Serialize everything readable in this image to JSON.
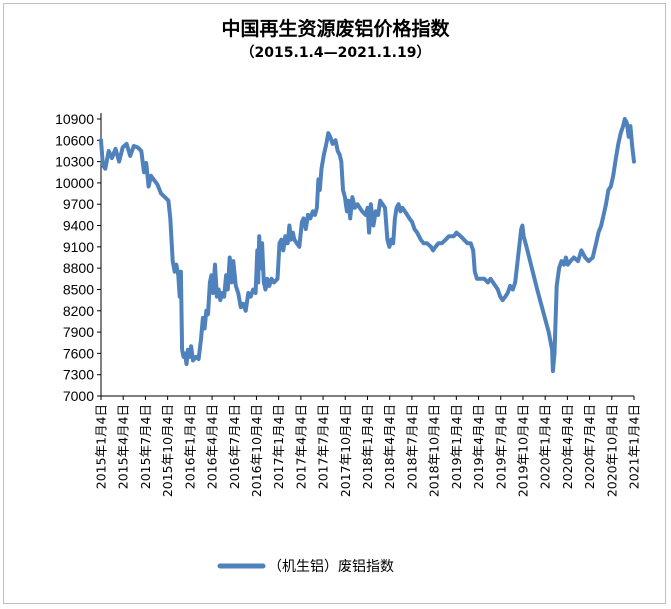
{
  "chart_data": {
    "type": "line",
    "title": "中国再生资源废铝价格指数",
    "subtitle": "（2015.1.4—2021.1.19）",
    "xlabel": "",
    "ylabel": "",
    "ylim": [
      7000,
      10900
    ],
    "yticks": [
      "10900",
      "10600",
      "10300",
      "10000",
      "9700",
      "9400",
      "9100",
      "8800",
      "8500",
      "8200",
      "7900",
      "7600",
      "7300",
      "7000"
    ],
    "xticks": [
      "2015年1月4日",
      "2015年4月4日",
      "2015年7月4日",
      "2015年10月4日",
      "2016年1月4日",
      "2016年4月4日",
      "2016年7月4日",
      "2016年10月4日",
      "2017年1月4日",
      "2017年4月4日",
      "2017年7月4日",
      "2017年10月4日",
      "2018年1月4日",
      "2018年4月4日",
      "2018年7月4日",
      "2018年10月4日",
      "2019年1月4日",
      "2019年4月4日",
      "2019年7月4日",
      "2019年10月4日",
      "2020年1月4日",
      "2020年4月4日",
      "2020年7月4日",
      "2020年10月4日",
      "2021年1月4日"
    ],
    "x_range": [
      "2015-01-04",
      "2021-01-19"
    ],
    "grid": false,
    "legend_position": "bottom",
    "line_color": "#4f81bd",
    "series": [
      {
        "name": "（机生铝）废铝指数",
        "points": [
          [
            "2015-01-04",
            10600
          ],
          [
            "2015-01-12",
            10250
          ],
          [
            "2015-01-22",
            10200
          ],
          [
            "2015-02-05",
            10450
          ],
          [
            "2015-02-18",
            10350
          ],
          [
            "2015-03-05",
            10480
          ],
          [
            "2015-03-20",
            10300
          ],
          [
            "2015-04-04",
            10500
          ],
          [
            "2015-04-20",
            10550
          ],
          [
            "2015-05-05",
            10380
          ],
          [
            "2015-05-20",
            10520
          ],
          [
            "2015-06-05",
            10500
          ],
          [
            "2015-06-20",
            10450
          ],
          [
            "2015-07-01",
            10150
          ],
          [
            "2015-07-10",
            10280
          ],
          [
            "2015-07-20",
            9950
          ],
          [
            "2015-07-30",
            10100
          ],
          [
            "2015-08-10",
            10050
          ],
          [
            "2015-08-25",
            9980
          ],
          [
            "2015-09-10",
            9850
          ],
          [
            "2015-09-25",
            9800
          ],
          [
            "2015-10-10",
            9750
          ],
          [
            "2015-10-18",
            9500
          ],
          [
            "2015-10-28",
            8900
          ],
          [
            "2015-11-05",
            8750
          ],
          [
            "2015-11-12",
            8850
          ],
          [
            "2015-11-20",
            8700
          ],
          [
            "2015-11-26",
            8400
          ],
          [
            "2015-12-01",
            8750
          ],
          [
            "2015-12-06",
            7650
          ],
          [
            "2015-12-12",
            7550
          ],
          [
            "2015-12-18",
            7600
          ],
          [
            "2015-12-24",
            7450
          ],
          [
            "2015-12-30",
            7650
          ],
          [
            "2016-01-06",
            7550
          ],
          [
            "2016-01-12",
            7700
          ],
          [
            "2016-01-20",
            7500
          ],
          [
            "2016-02-01",
            7550
          ],
          [
            "2016-02-12",
            7520
          ],
          [
            "2016-02-22",
            7800
          ],
          [
            "2016-03-01",
            8100
          ],
          [
            "2016-03-08",
            7950
          ],
          [
            "2016-03-15",
            8200
          ],
          [
            "2016-03-22",
            8150
          ],
          [
            "2016-03-30",
            8600
          ],
          [
            "2016-04-05",
            8700
          ],
          [
            "2016-04-12",
            8450
          ],
          [
            "2016-04-20",
            8850
          ],
          [
            "2016-04-28",
            8400
          ],
          [
            "2016-05-05",
            8500
          ],
          [
            "2016-05-12",
            8350
          ],
          [
            "2016-05-20",
            8450
          ],
          [
            "2016-05-28",
            8400
          ],
          [
            "2016-06-05",
            8700
          ],
          [
            "2016-06-12",
            8500
          ],
          [
            "2016-06-20",
            8950
          ],
          [
            "2016-06-28",
            8600
          ],
          [
            "2016-07-05",
            8900
          ],
          [
            "2016-07-15",
            8550
          ],
          [
            "2016-07-25",
            8450
          ],
          [
            "2016-08-05",
            8250
          ],
          [
            "2016-08-15",
            8300
          ],
          [
            "2016-08-25",
            8200
          ],
          [
            "2016-09-05",
            8450
          ],
          [
            "2016-09-15",
            8400
          ],
          [
            "2016-09-25",
            8500
          ],
          [
            "2016-10-05",
            8450
          ],
          [
            "2016-10-12",
            9050
          ],
          [
            "2016-10-16",
            8600
          ],
          [
            "2016-10-20",
            9250
          ],
          [
            "2016-10-26",
            8800
          ],
          [
            "2016-11-01",
            9150
          ],
          [
            "2016-11-08",
            8600
          ],
          [
            "2016-11-15",
            8500
          ],
          [
            "2016-11-22",
            8650
          ],
          [
            "2016-12-01",
            8550
          ],
          [
            "2016-12-10",
            8650
          ],
          [
            "2016-12-20",
            8600
          ],
          [
            "2017-01-04",
            8650
          ],
          [
            "2017-01-12",
            9150
          ],
          [
            "2017-01-20",
            9200
          ],
          [
            "2017-01-28",
            9050
          ],
          [
            "2017-02-05",
            9250
          ],
          [
            "2017-02-15",
            9150
          ],
          [
            "2017-02-22",
            9400
          ],
          [
            "2017-03-01",
            9200
          ],
          [
            "2017-03-08",
            9300
          ],
          [
            "2017-03-15",
            9200
          ],
          [
            "2017-03-25",
            9150
          ],
          [
            "2017-04-04",
            9100
          ],
          [
            "2017-04-15",
            9450
          ],
          [
            "2017-04-22",
            9500
          ],
          [
            "2017-05-01",
            9350
          ],
          [
            "2017-05-10",
            9550
          ],
          [
            "2017-05-20",
            9500
          ],
          [
            "2017-05-30",
            9600
          ],
          [
            "2017-06-08",
            9550
          ],
          [
            "2017-06-16",
            9650
          ],
          [
            "2017-06-22",
            10050
          ],
          [
            "2017-06-28",
            9900
          ],
          [
            "2017-07-05",
            10200
          ],
          [
            "2017-07-15",
            10400
          ],
          [
            "2017-07-25",
            10550
          ],
          [
            "2017-08-02",
            10700
          ],
          [
            "2017-08-10",
            10650
          ],
          [
            "2017-08-20",
            10550
          ],
          [
            "2017-09-01",
            10600
          ],
          [
            "2017-09-10",
            10450
          ],
          [
            "2017-09-18",
            10400
          ],
          [
            "2017-09-25",
            10300
          ],
          [
            "2017-10-02",
            9900
          ],
          [
            "2017-10-10",
            9800
          ],
          [
            "2017-10-18",
            9600
          ],
          [
            "2017-10-25",
            9750
          ],
          [
            "2017-11-01",
            9500
          ],
          [
            "2017-11-10",
            9800
          ],
          [
            "2017-11-20",
            9650
          ],
          [
            "2017-12-01",
            9700
          ],
          [
            "2017-12-10",
            9650
          ],
          [
            "2017-12-20",
            9600
          ],
          [
            "2018-01-04",
            9550
          ],
          [
            "2018-01-12",
            9650
          ],
          [
            "2018-01-18",
            9300
          ],
          [
            "2018-01-25",
            9700
          ],
          [
            "2018-02-05",
            9400
          ],
          [
            "2018-02-15",
            9600
          ],
          [
            "2018-02-25",
            9550
          ],
          [
            "2018-03-05",
            9750
          ],
          [
            "2018-03-15",
            9700
          ],
          [
            "2018-03-25",
            9650
          ],
          [
            "2018-04-04",
            9200
          ],
          [
            "2018-04-12",
            9100
          ],
          [
            "2018-04-20",
            9200
          ],
          [
            "2018-04-28",
            9150
          ],
          [
            "2018-05-05",
            9500
          ],
          [
            "2018-05-12",
            9650
          ],
          [
            "2018-05-20",
            9700
          ],
          [
            "2018-05-28",
            9600
          ],
          [
            "2018-06-05",
            9650
          ],
          [
            "2018-06-15",
            9600
          ],
          [
            "2018-06-25",
            9550
          ],
          [
            "2018-07-04",
            9500
          ],
          [
            "2018-07-15",
            9450
          ],
          [
            "2018-07-25",
            9350
          ],
          [
            "2018-08-05",
            9300
          ],
          [
            "2018-08-20",
            9200
          ],
          [
            "2018-09-01",
            9150
          ],
          [
            "2018-09-15",
            9150
          ],
          [
            "2018-10-01",
            9100
          ],
          [
            "2018-10-10",
            9050
          ],
          [
            "2018-10-20",
            9100
          ],
          [
            "2018-11-01",
            9150
          ],
          [
            "2018-11-15",
            9150
          ],
          [
            "2018-12-01",
            9200
          ],
          [
            "2018-12-15",
            9250
          ],
          [
            "2019-01-04",
            9250
          ],
          [
            "2019-01-15",
            9300
          ],
          [
            "2019-02-01",
            9250
          ],
          [
            "2019-02-15",
            9200
          ],
          [
            "2019-03-01",
            9150
          ],
          [
            "2019-03-15",
            9150
          ],
          [
            "2019-03-25",
            9050
          ],
          [
            "2019-04-01",
            8750
          ],
          [
            "2019-04-10",
            8650
          ],
          [
            "2019-04-25",
            8650
          ],
          [
            "2019-05-10",
            8650
          ],
          [
            "2019-05-25",
            8600
          ],
          [
            "2019-06-05",
            8650
          ],
          [
            "2019-06-15",
            8600
          ],
          [
            "2019-06-25",
            8550
          ],
          [
            "2019-07-05",
            8500
          ],
          [
            "2019-07-15",
            8400
          ],
          [
            "2019-07-25",
            8350
          ],
          [
            "2019-08-05",
            8400
          ],
          [
            "2019-08-15",
            8450
          ],
          [
            "2019-08-25",
            8550
          ],
          [
            "2019-09-05",
            8500
          ],
          [
            "2019-09-15",
            8600
          ],
          [
            "2019-09-30",
            9050
          ],
          [
            "2019-10-10",
            9350
          ],
          [
            "2019-10-15",
            9400
          ],
          [
            "2019-10-20",
            9250
          ],
          [
            "2019-11-01",
            9100
          ],
          [
            "2019-12-15",
            8500
          ],
          [
            "2020-02-01",
            7900
          ],
          [
            "2020-02-15",
            7650
          ],
          [
            "2020-02-18",
            7350
          ],
          [
            "2020-02-25",
            7600
          ],
          [
            "2020-03-05",
            8550
          ],
          [
            "2020-03-15",
            8800
          ],
          [
            "2020-03-25",
            8900
          ],
          [
            "2020-04-04",
            8850
          ],
          [
            "2020-04-12",
            8950
          ],
          [
            "2020-04-20",
            8850
          ],
          [
            "2020-05-01",
            8900
          ],
          [
            "2020-05-15",
            8950
          ],
          [
            "2020-06-01",
            8900
          ],
          [
            "2020-06-15",
            9050
          ],
          [
            "2020-07-01",
            8950
          ],
          [
            "2020-07-15",
            8900
          ],
          [
            "2020-08-01",
            8950
          ],
          [
            "2020-08-15",
            9150
          ],
          [
            "2020-08-25",
            9300
          ],
          [
            "2020-09-05",
            9400
          ],
          [
            "2020-09-15",
            9550
          ],
          [
            "2020-09-25",
            9700
          ],
          [
            "2020-10-05",
            9900
          ],
          [
            "2020-10-15",
            9950
          ],
          [
            "2020-10-25",
            10100
          ],
          [
            "2020-11-05",
            10350
          ],
          [
            "2020-11-15",
            10550
          ],
          [
            "2020-11-25",
            10700
          ],
          [
            "2020-12-05",
            10800
          ],
          [
            "2020-12-12",
            10900
          ],
          [
            "2020-12-20",
            10850
          ],
          [
            "2020-12-28",
            10650
          ],
          [
            "2021-01-04",
            10800
          ],
          [
            "2021-01-12",
            10500
          ],
          [
            "2021-01-19",
            10300
          ]
        ]
      }
    ]
  }
}
